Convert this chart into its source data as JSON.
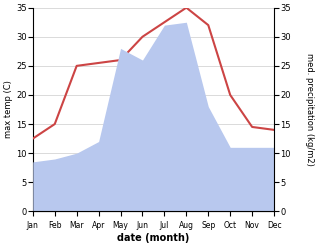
{
  "months": [
    "Jan",
    "Feb",
    "Mar",
    "Apr",
    "May",
    "Jun",
    "Jul",
    "Aug",
    "Sep",
    "Oct",
    "Nov",
    "Dec"
  ],
  "max_temp": [
    12.5,
    15.0,
    25.0,
    25.5,
    26.0,
    30.0,
    32.5,
    35.0,
    32.0,
    20.0,
    14.5,
    14.0
  ],
  "precipitation": [
    8.5,
    9.0,
    10.0,
    12.0,
    28.0,
    26.0,
    32.0,
    32.5,
    18.0,
    11.0,
    11.0,
    11.0
  ],
  "temp_color": "#cc4444",
  "precip_color": "#b8c8ee",
  "ylim_left": [
    0,
    35
  ],
  "ylim_right": [
    0,
    35
  ],
  "yticks": [
    0,
    5,
    10,
    15,
    20,
    25,
    30,
    35
  ],
  "xlabel": "date (month)",
  "ylabel_left": "max temp (C)",
  "ylabel_right": "med. precipitation (kg/m2)",
  "bg_color": "#ffffff",
  "grid_color": "#cccccc"
}
